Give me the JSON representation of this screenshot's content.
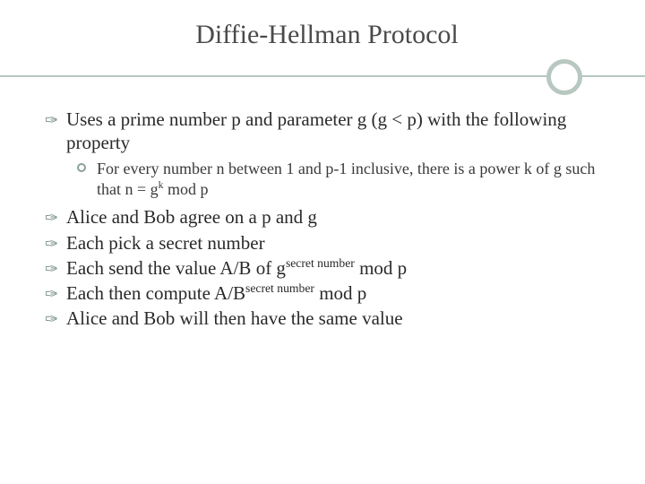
{
  "colors": {
    "background": "#ffffff",
    "title_text": "#4a4a4a",
    "body_text": "#2a2a2a",
    "sub_text": "#3a3a3a",
    "accent": "#b6c8c0",
    "accent_dark": "#7a9188"
  },
  "typography": {
    "family": "Georgia, serif",
    "title_size_pt": 30,
    "body_size_pt": 21,
    "sub_size_pt": 18
  },
  "title": "Diffie-Hellman Protocol",
  "bullets": [
    {
      "level": 1,
      "html": "Uses a prime number p and parameter g (g < p) with the following property"
    },
    {
      "level": 2,
      "html": "For every number n between 1 and p-1 inclusive, there is a power k of g such that n = g<sup>k</sup> mod p"
    },
    {
      "level": 1,
      "html": "Alice and Bob agree on a p and g"
    },
    {
      "level": 1,
      "html": "Each pick a secret number"
    },
    {
      "level": 1,
      "html": "Each send the value A/B of g<sup>secret number</sup> mod p"
    },
    {
      "level": 1,
      "html": "Each then compute A/B<sup>secret number</sup> mod p"
    },
    {
      "level": 1,
      "html": "Alice and Bob will then have the same value"
    }
  ]
}
